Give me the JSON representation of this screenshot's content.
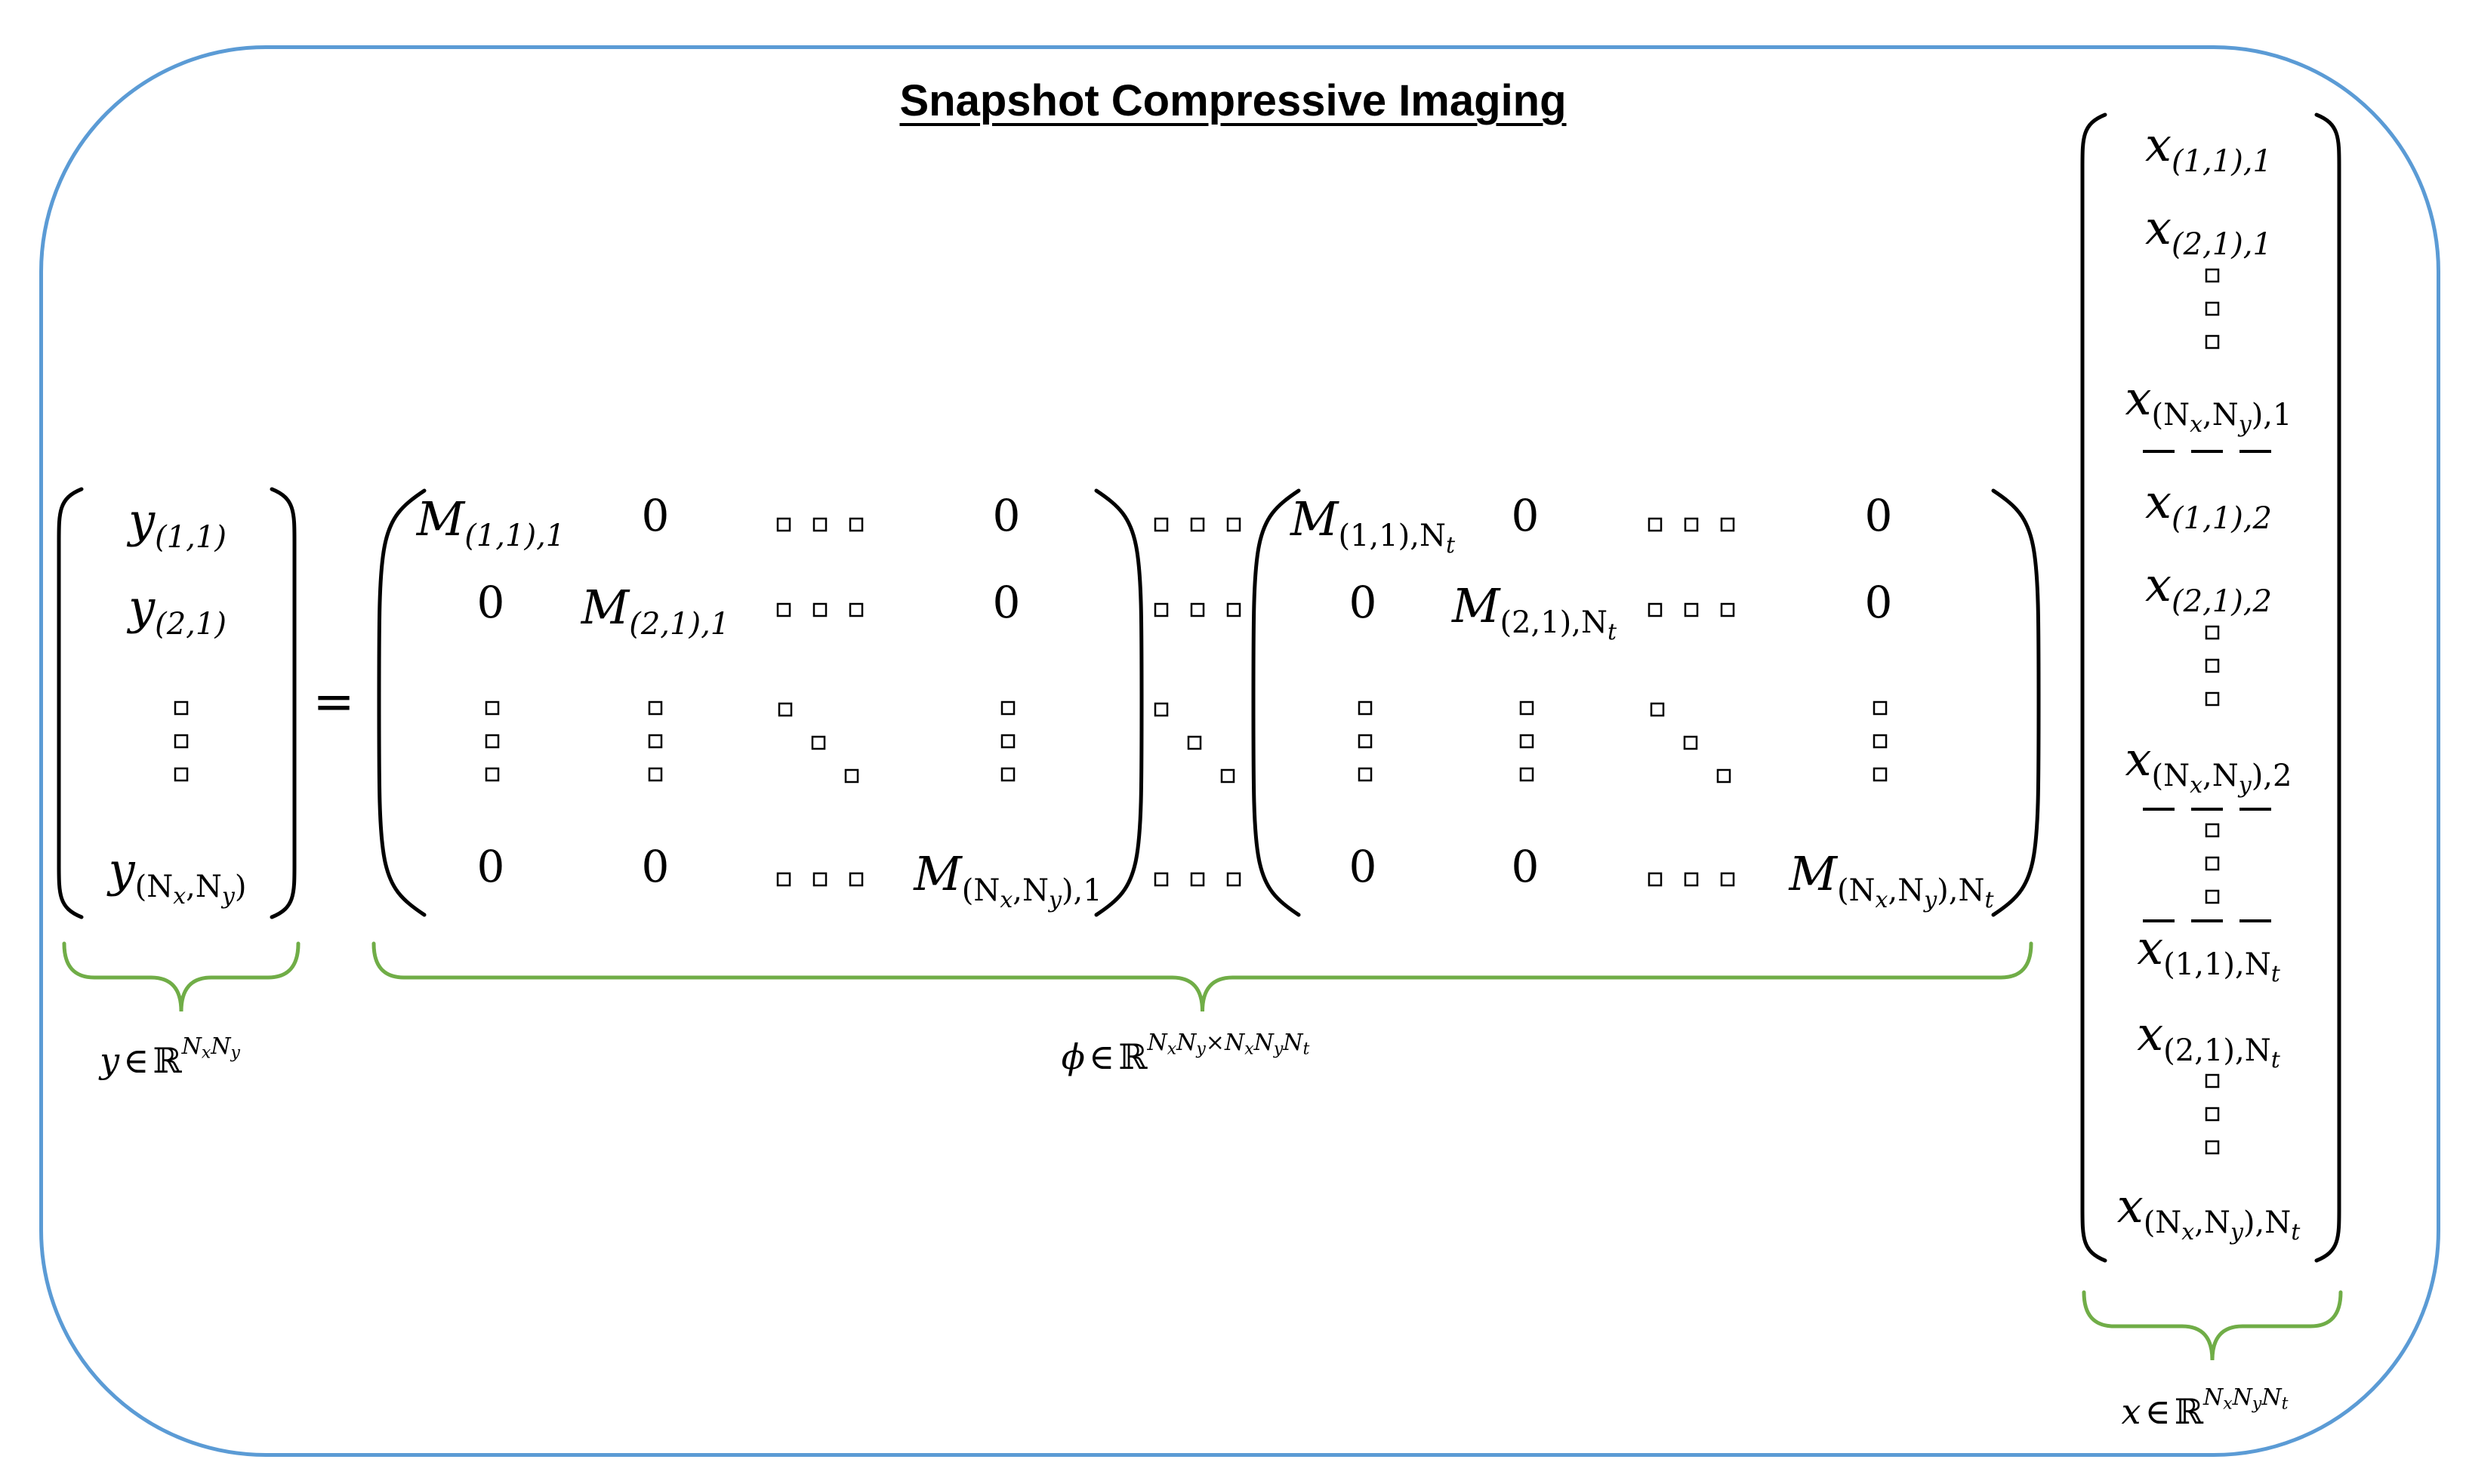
{
  "title": "Snapshot Compressive Imaging",
  "equals_sign": "=",
  "zero": "0",
  "colors": {
    "frame": "#5b9bd5",
    "brace": "#70ad47",
    "text": "#000000"
  },
  "icons": [
    "small-square-placeholder-glyph"
  ],
  "labels": {
    "y": {
      "var": "y",
      "rel": "∈",
      "set": "ℝ",
      "exp": "N",
      "exp_sub": [
        "x",
        "y"
      ]
    },
    "phi": {
      "var": "ϕ",
      "rel": "∈",
      "set": "ℝ",
      "exp": "N",
      "exp_sub": [
        "x",
        "y"
      ],
      "times": "×",
      "exp2_sub": [
        "x",
        "y",
        "t"
      ]
    },
    "x": {
      "var": "x",
      "rel": "∈",
      "set": "ℝ",
      "exp": "N",
      "exp_sub": [
        "x",
        "y",
        "t"
      ]
    }
  },
  "y_vector": {
    "entries": [
      {
        "sym": "y",
        "sub": "(1,1)"
      },
      {
        "sym": "y",
        "sub": "(2,1)"
      },
      {
        "sym": "y",
        "sub_pre": "(N",
        "sub_a": "x",
        "sub_mid": ",N",
        "sub_b": "y",
        "sub_post": ")"
      }
    ]
  },
  "phi_matrix": {
    "block1": {
      "m11": {
        "sym": "M",
        "sub": "(1,1),1"
      },
      "m22": {
        "sym": "M",
        "sub": "(2,1),1"
      },
      "mnn": {
        "sym": "M",
        "sub_pre": "(N",
        "sub_a": "x",
        "sub_mid": ",N",
        "sub_b": "y",
        "sub_post": "),1"
      }
    },
    "block2": {
      "m11": {
        "sym": "M",
        "sub_pre": "(1,1),N",
        "sub_t": "t"
      },
      "m22": {
        "sym": "M",
        "sub_pre": "(2,1),N",
        "sub_t": "t"
      },
      "mnn": {
        "sym": "M",
        "sub_pre": "(N",
        "sub_a": "x",
        "sub_mid": ",N",
        "sub_b": "y",
        "sub_post": "),N",
        "sub_t": "t"
      }
    }
  },
  "x_vector": {
    "entries": [
      {
        "sym": "x",
        "sub": "(1,1),1"
      },
      {
        "sym": "x",
        "sub": "(2,1),1"
      },
      {
        "sym": "x",
        "sub_pre": "(N",
        "sub_a": "x",
        "sub_mid": ",N",
        "sub_b": "y",
        "sub_post": "),1"
      },
      {
        "sym": "x",
        "sub": "(1,1),2"
      },
      {
        "sym": "x",
        "sub": "(2,1),2"
      },
      {
        "sym": "x",
        "sub_pre": "(N",
        "sub_a": "x",
        "sub_mid": ",N",
        "sub_b": "y",
        "sub_post": "),2"
      },
      {
        "sym": "x",
        "sub_pre": "(1,1),N",
        "sub_t": "t"
      },
      {
        "sym": "x",
        "sub_pre": "(2,1),N",
        "sub_t": "t"
      },
      {
        "sym": "x",
        "sub_pre": "(N",
        "sub_a": "x",
        "sub_mid": ",N",
        "sub_b": "y",
        "sub_post": "),N",
        "sub_t": "t"
      }
    ]
  }
}
